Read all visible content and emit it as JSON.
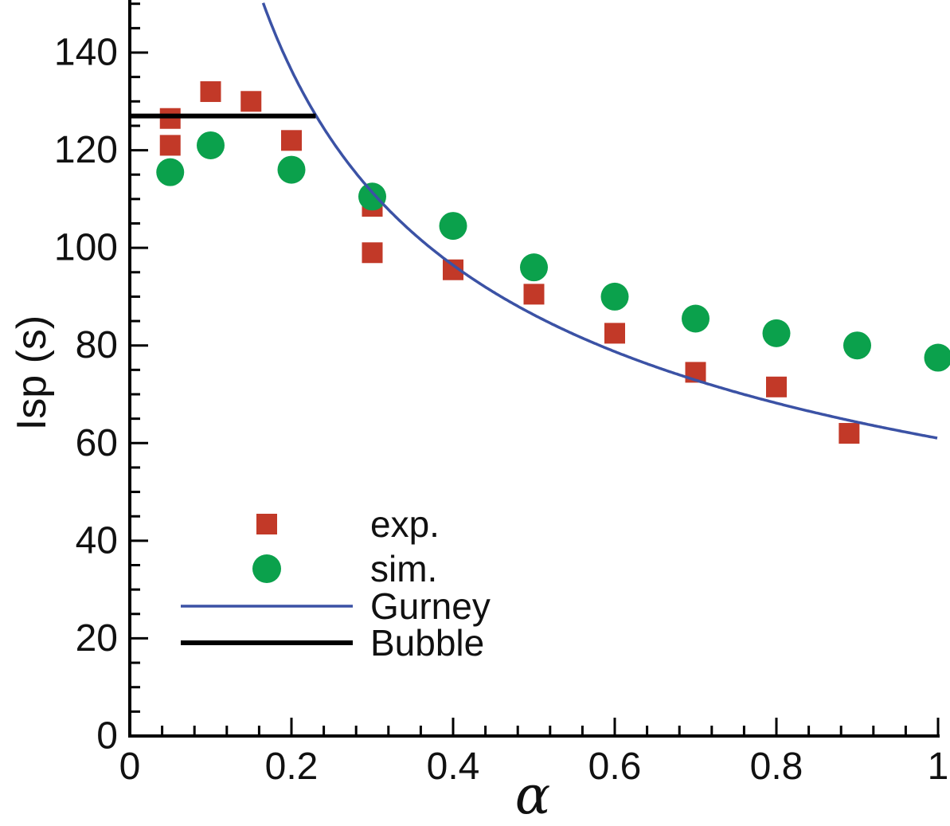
{
  "figure": {
    "background": "#ffffff",
    "axis_color": "#000000"
  },
  "chart_data": {
    "type": "scatter",
    "title": "",
    "xlabel": "α",
    "ylabel": "Isp (s)",
    "xlim": [
      0,
      1
    ],
    "ylim": [
      0,
      151
    ],
    "grid": false,
    "x_major_ticks": {
      "values": [
        0,
        0.2,
        0.4,
        0.6,
        0.8,
        1
      ],
      "labels": [
        "0",
        "0.2",
        "0.4",
        "0.6",
        "0.8",
        "1"
      ]
    },
    "x_minor_step": 0.04,
    "y_major_ticks": {
      "values": [
        0,
        20,
        40,
        60,
        80,
        100,
        120,
        140
      ],
      "labels": [
        "0",
        "20",
        "40",
        "60",
        "80",
        "100",
        "120",
        "140"
      ]
    },
    "y_minor_step": 5,
    "series": [
      {
        "name": "exp.",
        "type": "scatter",
        "marker": "square",
        "color": "#c23928",
        "points": [
          [
            0.05,
            126.5
          ],
          [
            0.05,
            121
          ],
          [
            0.1,
            132
          ],
          [
            0.15,
            130
          ],
          [
            0.2,
            122
          ],
          [
            0.3,
            108.5
          ],
          [
            0.3,
            99
          ],
          [
            0.4,
            95.5
          ],
          [
            0.5,
            90.5
          ],
          [
            0.6,
            82.5
          ],
          [
            0.7,
            74.5
          ],
          [
            0.8,
            71.5
          ],
          [
            0.89,
            62
          ]
        ]
      },
      {
        "name": "sim.",
        "type": "scatter",
        "marker": "circle",
        "color": "#0ba14c",
        "points": [
          [
            0.05,
            115.5
          ],
          [
            0.1,
            121
          ],
          [
            0.2,
            116
          ],
          [
            0.3,
            110.5
          ],
          [
            0.4,
            104.5
          ],
          [
            0.5,
            96
          ],
          [
            0.6,
            90
          ],
          [
            0.7,
            85.5
          ],
          [
            0.8,
            82.5
          ],
          [
            0.9,
            80
          ],
          [
            1.0,
            77.5
          ]
        ]
      },
      {
        "name": "Gurney",
        "type": "curve",
        "color": "#3b52a5",
        "model": "Isp = C/sqrt(alpha)",
        "C": 61,
        "alpha_range": [
          0.163,
          1.0
        ]
      },
      {
        "name": "Bubble",
        "type": "hline",
        "color": "#000000",
        "value": 127,
        "alpha_range": [
          0,
          0.23
        ]
      }
    ],
    "legend": {
      "position": "inside-lower-left",
      "items": [
        {
          "label": "exp.",
          "swatch": "square",
          "color": "#c23928"
        },
        {
          "label": "sim.",
          "swatch": "circle",
          "color": "#0ba14c"
        },
        {
          "label": "Gurney",
          "swatch": "line",
          "color": "#3b52a5",
          "thickness": 3.5
        },
        {
          "label": "Bubble",
          "swatch": "line",
          "color": "#000000",
          "thickness": 6
        }
      ]
    }
  }
}
